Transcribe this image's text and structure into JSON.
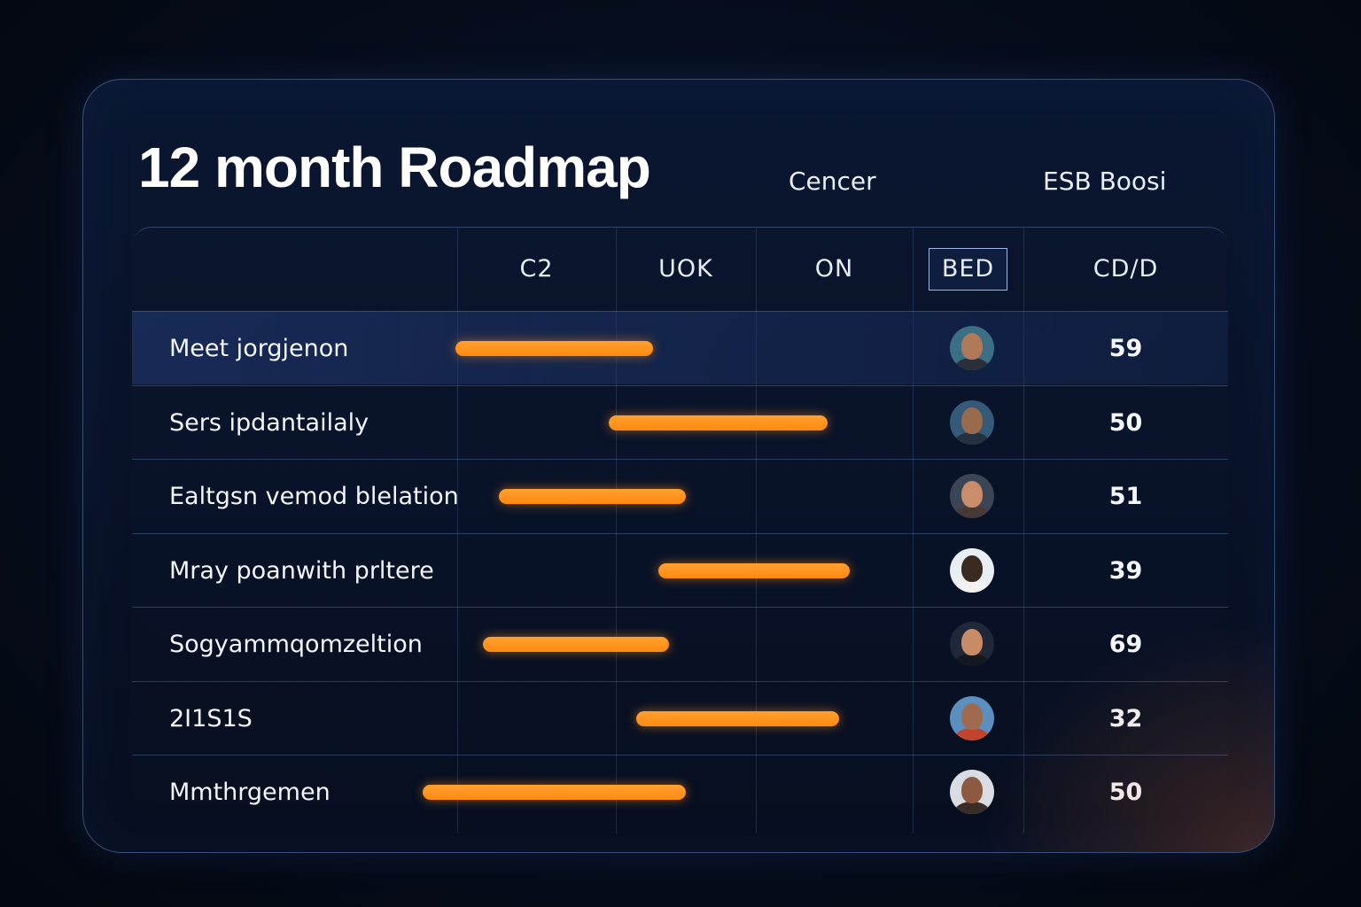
{
  "header": {
    "title": "12 month Roadmap",
    "link_1": "Cencer",
    "link_2": "ESB Boosi"
  },
  "columns": [
    "C2",
    "UOK",
    "ON",
    "BED",
    "CD/D"
  ],
  "rows": [
    {
      "label": "Meet jorgjenon",
      "score": "59",
      "bar_start": 0.295,
      "bar_end": 0.475,
      "avatar": {
        "bg": "#3a6f86",
        "skin": "#b07a5a",
        "shirt": "#2a2f3a"
      }
    },
    {
      "label": "Sers ipdantailaly",
      "score": "50",
      "bar_start": 0.435,
      "bar_end": 0.635,
      "avatar": {
        "bg": "#345a78",
        "skin": "#9a6a4c",
        "shirt": "#26303e"
      }
    },
    {
      "label": "Ealtgsn vemod blelation",
      "score": "51",
      "bar_start": 0.335,
      "bar_end": 0.505,
      "avatar": {
        "bg": "#3b4556",
        "skin": "#c98d6a",
        "shirt": "#473a36"
      }
    },
    {
      "label": "Mray poanwith prltere",
      "score": "39",
      "bar_start": 0.48,
      "bar_end": 0.655,
      "avatar": {
        "bg": "#e9eef3",
        "skin": "#3a2a22",
        "shirt": "#f2f2f2"
      }
    },
    {
      "label": "Sogyammqomzeltion",
      "score": "69",
      "bar_start": 0.32,
      "bar_end": 0.49,
      "avatar": {
        "bg": "#1e2838",
        "skin": "#c98a66",
        "shirt": "#15181f"
      }
    },
    {
      "label": "2I1S1S",
      "score": "32",
      "bar_start": 0.46,
      "bar_end": 0.645,
      "avatar": {
        "bg": "#5a8fc0",
        "skin": "#a06a4e",
        "shirt": "#c3442e"
      }
    },
    {
      "label": "Mmthrgemen",
      "score": "50",
      "bar_start": 0.265,
      "bar_end": 0.505,
      "avatar": {
        "bg": "#d9dde3",
        "skin": "#8c5a40",
        "shirt": "#3a2c26"
      }
    }
  ],
  "colors": {
    "bar": "#ff8a10",
    "accent_border": "#9fb7e8"
  },
  "icons": {
    "avatar": "person-avatar-icon"
  }
}
